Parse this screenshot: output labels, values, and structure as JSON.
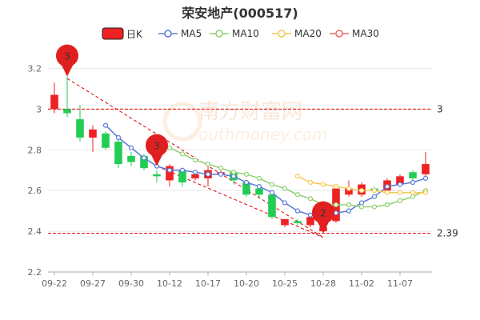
{
  "title": "荣安地产(000517)",
  "watermark": {
    "cn": "南方财富网",
    "en": "outhmoney.com"
  },
  "colors": {
    "up": "#ee2222",
    "down": "#22cc55",
    "ma5": "#5b7bd5",
    "ma10": "#90d070",
    "ma20": "#f5c850",
    "ma30": "#ee6666",
    "ref": "#dd0000",
    "grid": "#e8e8e8",
    "axis": "#aaaaaa"
  },
  "chart_data": {
    "type": "candlestick",
    "title": "荣安地产(000517)",
    "legend": [
      {
        "key": "k",
        "label": "日K"
      },
      {
        "key": "ma5",
        "label": "MA5"
      },
      {
        "key": "ma10",
        "label": "MA10"
      },
      {
        "key": "ma20",
        "label": "MA20"
      },
      {
        "key": "ma30",
        "label": "MA30"
      }
    ],
    "ylim": [
      2.2,
      3.3
    ],
    "yticks": [
      "2.2",
      "2.4",
      "2.6",
      "2.8",
      "3",
      "3.2"
    ],
    "xtick_labels": [
      {
        "label": "09-22",
        "idx": 0
      },
      {
        "label": "09-27",
        "idx": 3
      },
      {
        "label": "09-30",
        "idx": 6
      },
      {
        "label": "10-12",
        "idx": 9
      },
      {
        "label": "10-17",
        "idx": 12
      },
      {
        "label": "10-20",
        "idx": 15
      },
      {
        "label": "10-25",
        "idx": 18
      },
      {
        "label": "10-28",
        "idx": 21
      },
      {
        "label": "11-02",
        "idx": 24
      },
      {
        "label": "11-07",
        "idx": 27
      }
    ],
    "candles": [
      {
        "o": 3.0,
        "c": 3.07,
        "h": 3.13,
        "l": 2.98
      },
      {
        "o": 3.0,
        "c": 2.98,
        "h": 3.16,
        "l": 2.96
      },
      {
        "o": 2.95,
        "c": 2.86,
        "h": 3.02,
        "l": 2.84
      },
      {
        "o": 2.86,
        "c": 2.9,
        "h": 2.92,
        "l": 2.79
      },
      {
        "o": 2.88,
        "c": 2.81,
        "h": 2.89,
        "l": 2.8
      },
      {
        "o": 2.84,
        "c": 2.73,
        "h": 2.86,
        "l": 2.71
      },
      {
        "o": 2.77,
        "c": 2.74,
        "h": 2.79,
        "l": 2.72
      },
      {
        "o": 2.77,
        "c": 2.71,
        "h": 2.78,
        "l": 2.7
      },
      {
        "o": 2.68,
        "c": 2.67,
        "h": 2.7,
        "l": 2.64
      },
      {
        "o": 2.65,
        "c": 2.72,
        "h": 2.73,
        "l": 2.62
      },
      {
        "o": 2.7,
        "c": 2.64,
        "h": 2.71,
        "l": 2.62
      },
      {
        "o": 2.66,
        "c": 2.68,
        "h": 2.7,
        "l": 2.65
      },
      {
        "o": 2.66,
        "c": 2.7,
        "h": 2.72,
        "l": 2.62
      },
      {
        "o": 2.68,
        "c": 2.69,
        "h": 2.72,
        "l": 2.67
      },
      {
        "o": 2.69,
        "c": 2.65,
        "h": 2.7,
        "l": 2.63
      },
      {
        "o": 2.64,
        "c": 2.58,
        "h": 2.65,
        "l": 2.57
      },
      {
        "o": 2.61,
        "c": 2.58,
        "h": 2.62,
        "l": 2.56
      },
      {
        "o": 2.58,
        "c": 2.47,
        "h": 2.59,
        "l": 2.46
      },
      {
        "o": 2.43,
        "c": 2.46,
        "h": 2.46,
        "l": 2.42
      },
      {
        "o": 2.45,
        "c": 2.44,
        "h": 2.46,
        "l": 2.43
      },
      {
        "o": 2.43,
        "c": 2.47,
        "h": 2.48,
        "l": 2.42
      },
      {
        "o": 2.4,
        "c": 2.42,
        "h": 2.43,
        "l": 2.39
      },
      {
        "o": 2.45,
        "c": 2.61,
        "h": 2.62,
        "l": 2.44
      },
      {
        "o": 2.58,
        "c": 2.61,
        "h": 2.65,
        "l": 2.57
      },
      {
        "o": 2.58,
        "c": 2.63,
        "h": 2.64,
        "l": 2.57
      },
      {
        "o": 2.61,
        "c": 2.6,
        "h": 2.62,
        "l": 2.59
      },
      {
        "o": 2.6,
        "c": 2.65,
        "h": 2.66,
        "l": 2.59
      },
      {
        "o": 2.63,
        "c": 2.67,
        "h": 2.68,
        "l": 2.62
      },
      {
        "o": 2.69,
        "c": 2.66,
        "h": 2.7,
        "l": 2.65
      },
      {
        "o": 2.68,
        "c": 2.73,
        "h": 2.79,
        "l": 2.67
      }
    ],
    "ma5": [
      null,
      null,
      null,
      null,
      2.92,
      2.86,
      2.81,
      2.76,
      2.72,
      2.7,
      2.7,
      2.69,
      2.68,
      2.68,
      2.67,
      2.64,
      2.62,
      2.59,
      2.54,
      2.5,
      2.48,
      2.47,
      2.49,
      2.5,
      2.54,
      2.57,
      2.62,
      2.63,
      2.64,
      2.66
    ],
    "ma10": [
      null,
      null,
      null,
      null,
      null,
      null,
      null,
      null,
      null,
      2.81,
      2.78,
      2.75,
      2.73,
      2.71,
      2.69,
      2.68,
      2.66,
      2.63,
      2.61,
      2.58,
      2.56,
      2.53,
      2.53,
      2.53,
      2.52,
      2.52,
      2.53,
      2.55,
      2.57,
      2.6
    ],
    "ma20": [
      null,
      null,
      null,
      null,
      null,
      null,
      null,
      null,
      null,
      null,
      null,
      null,
      null,
      null,
      null,
      null,
      null,
      null,
      null,
      2.67,
      2.64,
      2.63,
      2.62,
      2.61,
      2.6,
      2.6,
      2.59,
      2.59,
      2.59,
      2.59
    ],
    "ma30": [],
    "levels": [
      {
        "value": 3,
        "label": "3"
      },
      {
        "value": 2.39,
        "label": "2.39"
      }
    ],
    "markers": [
      {
        "label": "3",
        "idx": 1,
        "value": 3.16
      },
      {
        "label": "3",
        "idx": 8,
        "value": 2.72
      },
      {
        "label": "2",
        "idx": 21,
        "value": 2.39
      }
    ],
    "trend_lines": [
      {
        "from_idx": 1,
        "from": 3.15,
        "to_idx": 21,
        "to": 2.37
      },
      {
        "from_idx": 8,
        "from": 2.72,
        "to_idx": 21,
        "to": 2.37
      }
    ]
  }
}
